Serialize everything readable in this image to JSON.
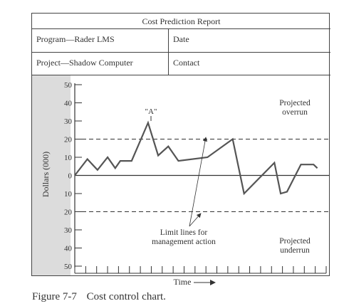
{
  "report": {
    "title": "Cost Prediction Report",
    "program": "Program—Rader LMS",
    "date_label": "Date",
    "project": "Project—Shadow Computer",
    "contact_label": "Contact"
  },
  "caption": {
    "figure": "Figure 7-7",
    "text": "Cost control chart."
  },
  "chart_data": {
    "type": "line",
    "ylabel": "Dollars (000)",
    "xlabel": "Time",
    "y_ticks": [
      50,
      40,
      30,
      20,
      10,
      0,
      -10,
      -20,
      -30,
      -40,
      -50
    ],
    "y_tick_labels": [
      "50",
      "40",
      "30",
      "20",
      "10",
      "0",
      "10",
      "20",
      "30",
      "40",
      "50"
    ],
    "ylim": [
      -50,
      50
    ],
    "x_tick_count": 24,
    "grid": false,
    "limit_lines": [
      20,
      -20
    ],
    "series": [
      {
        "x": [
          0,
          1,
          1.8,
          2.6,
          3.2,
          3.6,
          4.5,
          5.8,
          6.6,
          7.4,
          8.2,
          10.5,
          12.5,
          13.4,
          15.8,
          16.3,
          16.8,
          17.9,
          18.9,
          19.2
        ],
        "y": [
          0,
          9,
          3,
          10,
          4,
          8,
          8,
          29,
          11,
          16,
          8,
          10,
          20,
          -10,
          7,
          -10,
          -9,
          6,
          6,
          4
        ]
      }
    ],
    "xlim": [
      0,
      19.9
    ],
    "annotations": [
      {
        "text": "\"A\""
      },
      {
        "text": "Projected"
      },
      {
        "text": "overrun"
      },
      {
        "text": "Projected"
      },
      {
        "text": "underrun"
      },
      {
        "text": "Limit lines for"
      },
      {
        "text": "management action"
      }
    ]
  }
}
